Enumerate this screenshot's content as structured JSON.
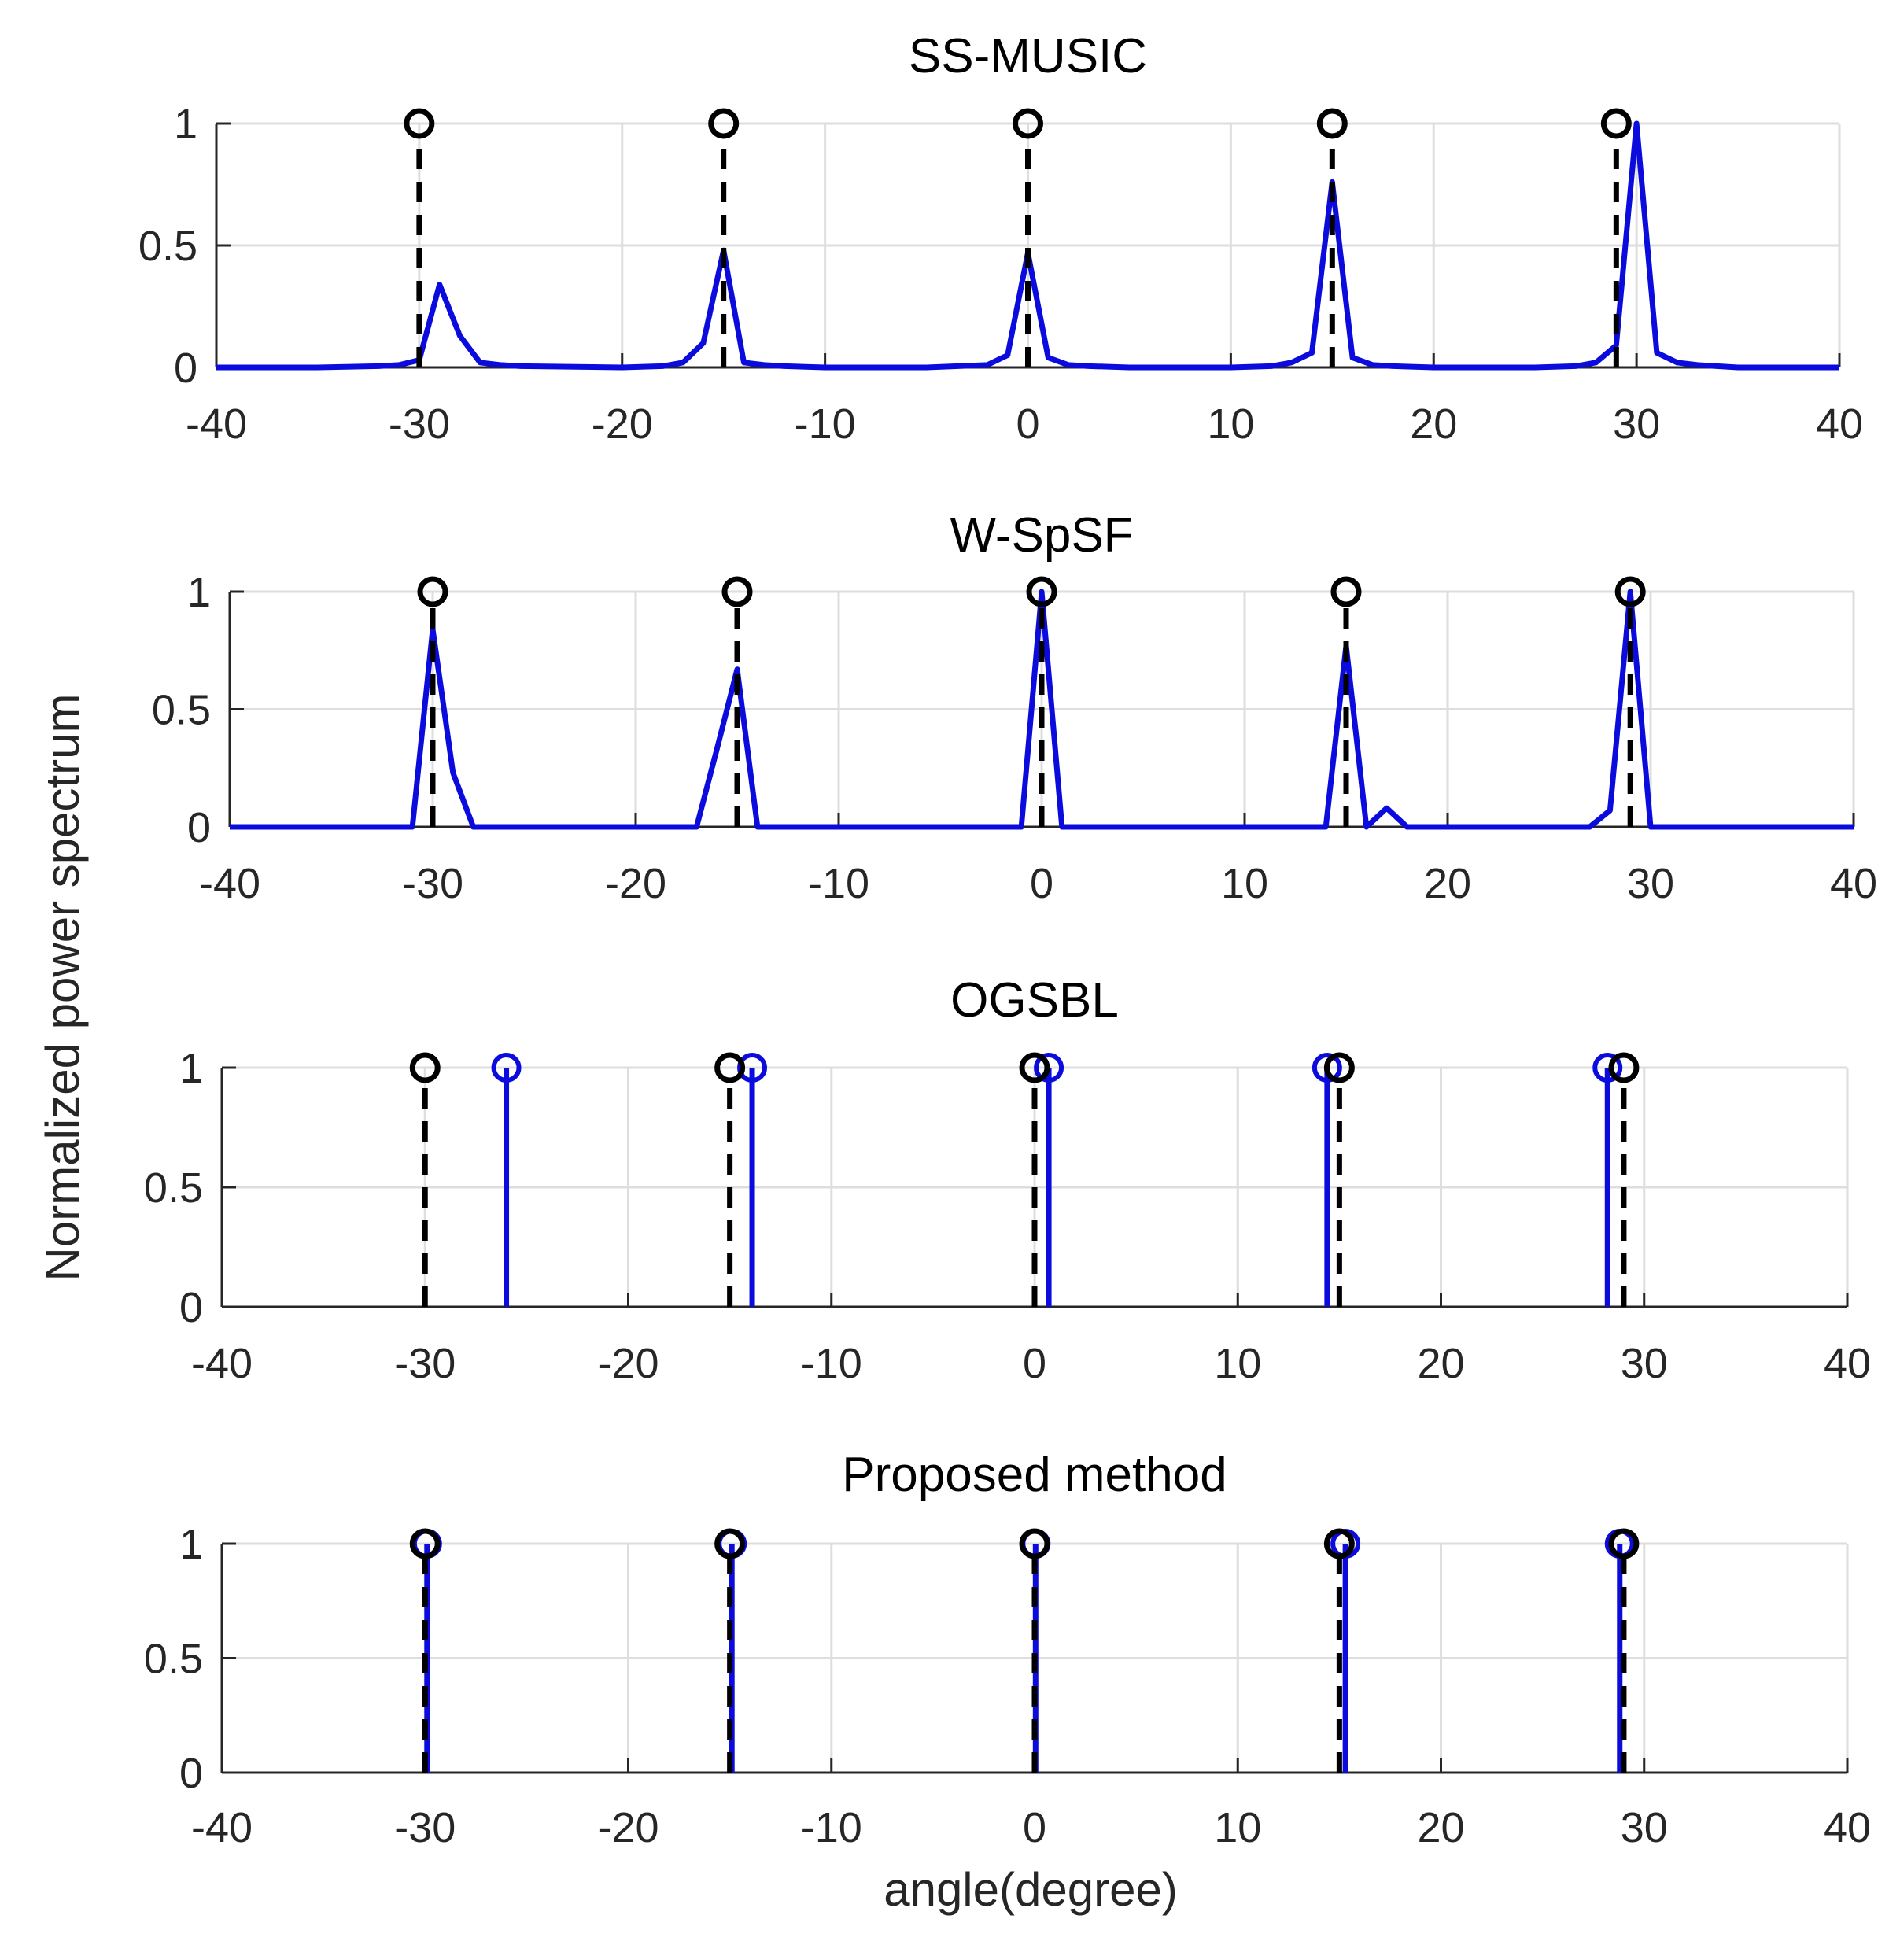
{
  "figure": {
    "ylabel": "Normalized power spectrum",
    "xlabel": "angle(degree)"
  },
  "chart_data": [
    {
      "type": "line",
      "title": "SS-MUSIC",
      "xlim": [
        -40,
        40
      ],
      "ylim": [
        0,
        1
      ],
      "xticks": [
        "-40",
        "-30",
        "-20",
        "-10",
        "0",
        "10",
        "20",
        "30",
        "40"
      ],
      "yticks": [
        "0",
        "0.5",
        "1"
      ],
      "grid": true,
      "true_doa": [
        -30,
        -15,
        0,
        15,
        29
      ],
      "spectrum": {
        "x": [
          -40,
          -35,
          -32,
          -31,
          -30,
          -29,
          -28,
          -27,
          -26,
          -25,
          -20,
          -18,
          -17,
          -16,
          -15,
          -14,
          -13,
          -12,
          -10,
          -5,
          -2,
          -1,
          0,
          1,
          2,
          3,
          5,
          10,
          12,
          13,
          14,
          15,
          16,
          17,
          18,
          20,
          25,
          27,
          28,
          29,
          30,
          31,
          32,
          33,
          35,
          40
        ],
        "y": [
          0,
          0,
          0.005,
          0.01,
          0.03,
          0.34,
          0.13,
          0.02,
          0.01,
          0.005,
          0,
          0.005,
          0.02,
          0.1,
          0.48,
          0.02,
          0.01,
          0.005,
          0,
          0,
          0.01,
          0.05,
          0.47,
          0.04,
          0.01,
          0.005,
          0,
          0,
          0.005,
          0.02,
          0.06,
          0.76,
          0.04,
          0.01,
          0.005,
          0,
          0,
          0.005,
          0.02,
          0.09,
          1.0,
          0.06,
          0.02,
          0.01,
          0,
          0
        ]
      }
    },
    {
      "type": "line",
      "title": "W-SpSF",
      "xlim": [
        -40,
        40
      ],
      "ylim": [
        0,
        1
      ],
      "xticks": [
        "-40",
        "-30",
        "-20",
        "-10",
        "0",
        "10",
        "20",
        "30",
        "40"
      ],
      "yticks": [
        "0",
        "0.5",
        "1"
      ],
      "grid": true,
      "true_doa": [
        -30,
        -15,
        0,
        15,
        29
      ],
      "spectrum": {
        "x": [
          -40,
          -31,
          -30,
          -29,
          -28,
          -17,
          -16,
          -15,
          -14,
          -1,
          0,
          1,
          14,
          15,
          16,
          17,
          18,
          27,
          28,
          29,
          30,
          40
        ],
        "y": [
          0,
          0,
          0.84,
          0.23,
          0,
          0,
          0.33,
          0.67,
          0,
          0,
          1.0,
          0,
          0,
          0.77,
          0,
          0.08,
          0,
          0,
          0.07,
          1.0,
          0,
          0
        ]
      }
    },
    {
      "type": "stem",
      "title": "OGSBL",
      "xlim": [
        -40,
        40
      ],
      "ylim": [
        0,
        1
      ],
      "xticks": [
        "-40",
        "-30",
        "-20",
        "-10",
        "0",
        "10",
        "20",
        "30",
        "40"
      ],
      "yticks": [
        "0",
        "0.5",
        "1"
      ],
      "grid": true,
      "true_doa": [
        -30,
        -15,
        0,
        15,
        29
      ],
      "estimates": [
        -26,
        -13.9,
        0.7,
        14.4,
        28.2
      ]
    },
    {
      "type": "stem",
      "title": "Proposed method",
      "xlim": [
        -40,
        40
      ],
      "ylim": [
        0,
        1
      ],
      "xticks": [
        "-40",
        "-30",
        "-20",
        "-10",
        "0",
        "10",
        "20",
        "30",
        "40"
      ],
      "yticks": [
        "0",
        "0.5",
        "1"
      ],
      "grid": true,
      "true_doa": [
        -30,
        -15,
        0,
        15,
        29
      ],
      "estimates": [
        -29.9,
        -14.9,
        0.05,
        15.3,
        28.8
      ]
    }
  ],
  "colors": {
    "estimate": "#0b0bdd",
    "true_doa": "#000000",
    "grid": "#dedede",
    "axis": "#262626"
  }
}
